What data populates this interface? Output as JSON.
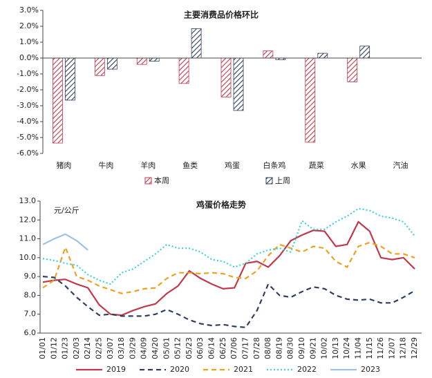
{
  "chart_data": [
    {
      "type": "bar",
      "title": "主要消费品价格环比",
      "categories": [
        "猪肉",
        "牛肉",
        "羊肉",
        "鱼类",
        "鸡蛋",
        "白条鸡",
        "蔬菜",
        "水果",
        "汽油"
      ],
      "series": [
        {
          "name": "本周",
          "color": "#c0394b",
          "hatch": true,
          "values": [
            -5.35,
            -1.1,
            -0.4,
            -1.6,
            -2.45,
            0.45,
            -5.3,
            -1.5,
            0
          ]
        },
        {
          "name": "上周",
          "color": "#2d3e5e",
          "hatch": true,
          "values": [
            -2.65,
            -0.7,
            -0.2,
            1.85,
            -3.3,
            -0.1,
            0.3,
            0.75,
            0
          ]
        }
      ],
      "ylim": [
        -6,
        3
      ],
      "yticks": [
        {
          "value": 3,
          "label": "3.0%"
        },
        {
          "value": 2,
          "label": "2.0%"
        },
        {
          "value": 1,
          "label": "1.0%"
        },
        {
          "value": 0,
          "label": "0.0%"
        },
        {
          "value": -1,
          "label": "-1.0%"
        },
        {
          "value": -2,
          "label": "-2.0%"
        },
        {
          "value": -3,
          "label": "-3.0%"
        },
        {
          "value": -4,
          "label": "-4.0%"
        },
        {
          "value": -5,
          "label": "-5.0%"
        },
        {
          "value": -6,
          "label": "-6.0%"
        }
      ],
      "legend": "bottom"
    },
    {
      "type": "line",
      "title": "鸡蛋价格走势",
      "ylabel": "元/公斤",
      "categories": [
        "01/01",
        "01/12",
        "01/23",
        "02/03",
        "02/14",
        "02/25",
        "03/07",
        "03/18",
        "03/29",
        "04/09",
        "04/20",
        "05/01",
        "05/12",
        "05/23",
        "06/03",
        "06/14",
        "06/25",
        "07/06",
        "07/17",
        "07/28",
        "08/08",
        "08/19",
        "08/30",
        "09/10",
        "09/21",
        "10/02",
        "10/13",
        "10/24",
        "11/04",
        "11/15",
        "11/26",
        "12/07",
        "12/18",
        "12/29"
      ],
      "series": [
        {
          "name": "2019",
          "color": "#c0394b",
          "dash": "solid",
          "values": [
            8.7,
            8.8,
            8.85,
            8.6,
            8.4,
            7.5,
            7.0,
            6.95,
            7.2,
            7.4,
            7.55,
            8.1,
            8.5,
            9.3,
            8.9,
            8.6,
            8.35,
            8.4,
            9.7,
            9.8,
            9.5,
            10.1,
            10.9,
            11.2,
            11.45,
            11.4,
            10.6,
            10.7,
            11.9,
            11.4,
            10.0,
            9.9,
            10.0,
            9.4
          ]
        },
        {
          "name": "2020",
          "color": "#2d3e5e",
          "dash": "dashed",
          "values": [
            9.0,
            8.95,
            8.5,
            7.9,
            7.4,
            6.95,
            7.0,
            6.9,
            6.9,
            6.9,
            7.0,
            7.25,
            7.0,
            6.7,
            6.5,
            6.4,
            6.45,
            6.35,
            6.3,
            7.2,
            8.6,
            8.0,
            7.9,
            8.2,
            8.45,
            8.35,
            8.0,
            7.8,
            7.75,
            7.8,
            7.6,
            7.6,
            7.9,
            8.25
          ]
        },
        {
          "name": "2021",
          "color": "#f0a020",
          "dash": "dashed",
          "values": [
            8.4,
            8.8,
            10.55,
            9.0,
            8.8,
            8.5,
            8.3,
            8.1,
            8.2,
            8.35,
            8.4,
            8.9,
            9.2,
            9.2,
            9.15,
            9.2,
            9.15,
            8.95,
            8.9,
            9.3,
            10.1,
            10.7,
            10.5,
            10.3,
            10.6,
            10.5,
            9.8,
            9.5,
            10.6,
            10.8,
            10.6,
            10.2,
            10.2,
            10.0
          ]
        },
        {
          "name": "2022",
          "color": "#3fcfdf",
          "dash": "dotted",
          "values": [
            9.95,
            9.85,
            9.7,
            9.6,
            9.1,
            8.8,
            8.6,
            9.2,
            9.4,
            9.8,
            10.2,
            10.7,
            10.5,
            10.5,
            10.3,
            9.9,
            9.8,
            9.5,
            9.7,
            10.2,
            10.4,
            10.5,
            10.3,
            11.95,
            11.5,
            11.5,
            11.9,
            12.2,
            12.6,
            12.5,
            12.2,
            12.1,
            11.9,
            11.15
          ]
        },
        {
          "name": "2023",
          "color": "#9cc3e0",
          "dash": "solid",
          "values": [
            10.7,
            11.0,
            11.25,
            10.9,
            10.4,
            null,
            null,
            null,
            null,
            null,
            null,
            null,
            null,
            null,
            null,
            null,
            null,
            null,
            null,
            null,
            null,
            null,
            null,
            null,
            null,
            null,
            null,
            null,
            null,
            null,
            null,
            null,
            null,
            null
          ]
        }
      ],
      "ylim": [
        6,
        13
      ],
      "yticks": [
        {
          "value": 13,
          "label": "13.0"
        },
        {
          "value": 12,
          "label": "12.0"
        },
        {
          "value": 11,
          "label": "11.0"
        },
        {
          "value": 10,
          "label": "10.0"
        },
        {
          "value": 9,
          "label": "9.0"
        },
        {
          "value": 8,
          "label": "8.0"
        },
        {
          "value": 7,
          "label": "7.0"
        },
        {
          "value": 6,
          "label": "6.0"
        }
      ],
      "legend": "bottom"
    }
  ]
}
